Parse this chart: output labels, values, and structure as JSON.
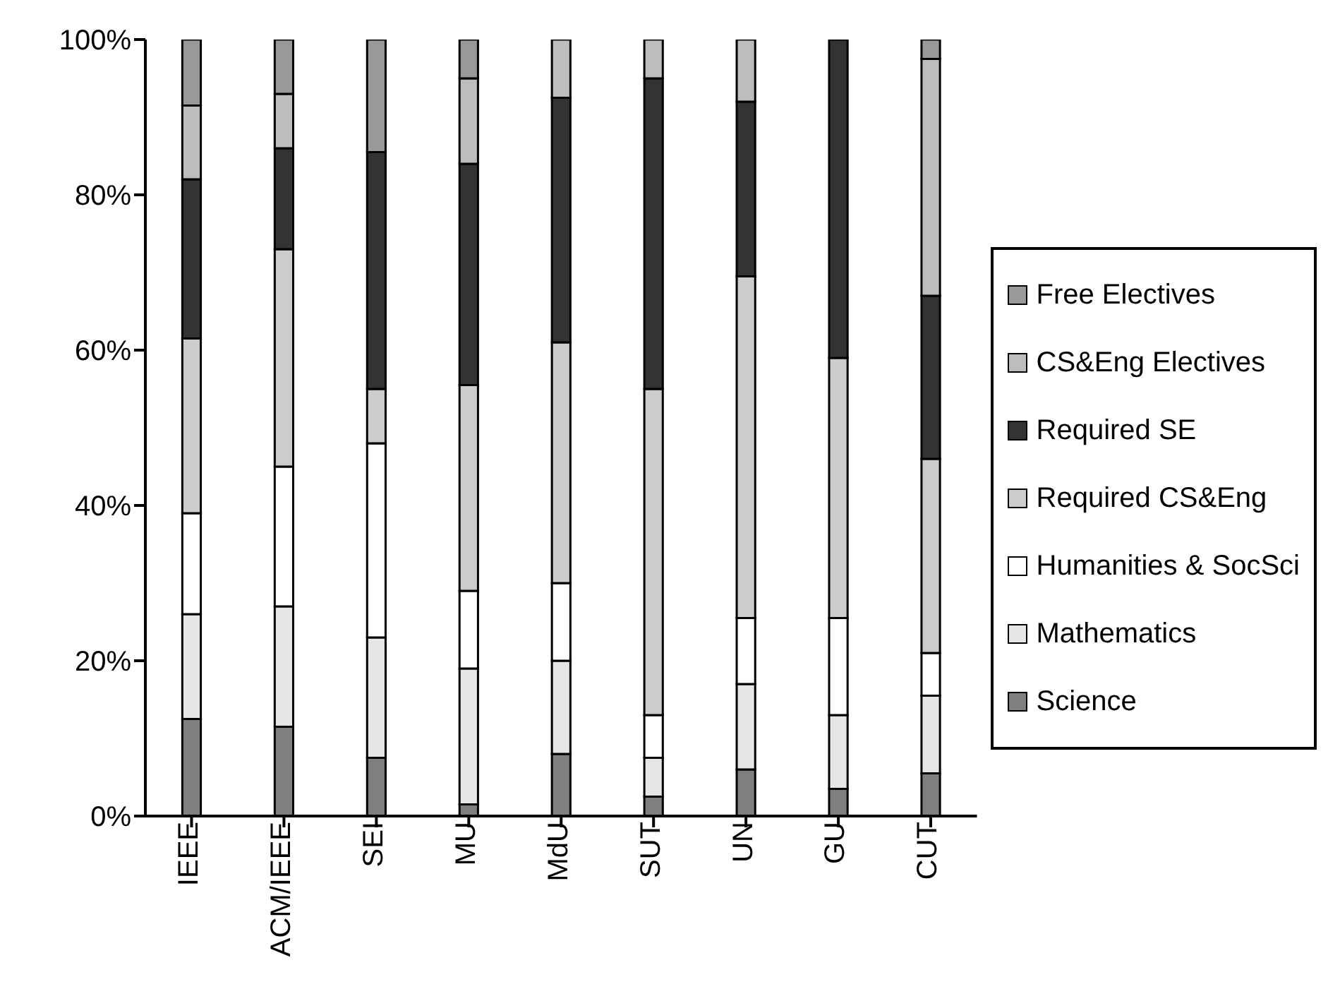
{
  "chart_data": {
    "type": "bar",
    "stacked": true,
    "categories": [
      "IEEE",
      "ACM/IEEE",
      "SEI",
      "MU",
      "MdU",
      "SUT",
      "UN",
      "GU",
      "CUT"
    ],
    "series": [
      {
        "name": "Science",
        "color": "#7f7f7f",
        "values": [
          12.5,
          11.5,
          7.5,
          1.5,
          8,
          2.5,
          6,
          3.5,
          5.5
        ]
      },
      {
        "name": "Mathematics",
        "color": "#e6e6e6",
        "values": [
          13.5,
          15.5,
          15.5,
          17.5,
          12,
          5,
          11,
          9.5,
          10
        ]
      },
      {
        "name": "Humanities & SocSci",
        "color": "#ffffff",
        "values": [
          13,
          18,
          25,
          10,
          10,
          5.5,
          8.5,
          12.5,
          5.5
        ]
      },
      {
        "name": "Required CS&Eng",
        "color": "#cccccc",
        "values": [
          22.5,
          28,
          7,
          26.5,
          31,
          42,
          44,
          33.5,
          25
        ]
      },
      {
        "name": "Required SE",
        "color": "#333333",
        "values": [
          20.5,
          13,
          30.5,
          28.5,
          31.5,
          40,
          22.5,
          41,
          21
        ]
      },
      {
        "name": "CS&Eng Electives",
        "color": "#bdbdbd",
        "values": [
          9.5,
          7,
          0,
          11,
          7.5,
          5,
          8,
          0,
          30.5
        ]
      },
      {
        "name": "Free Electives",
        "color": "#999999",
        "values": [
          8.5,
          7,
          14.5,
          5,
          0,
          0,
          0,
          0,
          2.5
        ]
      }
    ],
    "ylim": [
      0,
      100
    ],
    "yticks": [
      {
        "value": 0,
        "label": "0%"
      },
      {
        "value": 20,
        "label": "20%"
      },
      {
        "value": 40,
        "label": "40%"
      },
      {
        "value": 60,
        "label": "60%"
      },
      {
        "value": 80,
        "label": "80%"
      },
      {
        "value": 100,
        "label": "100%"
      }
    ],
    "grid": false,
    "legend": "right"
  }
}
